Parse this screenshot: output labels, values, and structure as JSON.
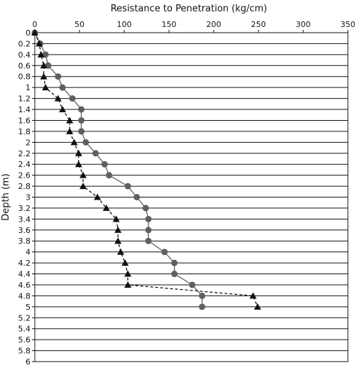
{
  "chart_data": {
    "type": "line",
    "title": "Resistance to Penetration (kg/cm)",
    "xlabel": "Resistance to Penetration (kg/cm)",
    "ylabel": "Depth (m)",
    "xlim": [
      0,
      350
    ],
    "ylim": [
      0,
      6
    ],
    "y_inverted": true,
    "x_axis_position": "top",
    "xticks": [
      "0",
      "50",
      "100",
      "150",
      "200",
      "250",
      "300",
      "350"
    ],
    "yticks": [
      "0",
      "0.2",
      "0.4",
      "0.6",
      "0.8",
      "1",
      "1.2",
      "1.4",
      "1.6",
      "1.8",
      "2",
      "2.2",
      "2.4",
      "2.6",
      "2.8",
      "3",
      "3.2",
      "3.4",
      "3.6",
      "3.8",
      "4",
      "4.2",
      "4.4",
      "4.6",
      "4.8",
      "5",
      "5.2",
      "5.4",
      "5.6",
      "5.8",
      "6"
    ],
    "grid": "horizontal",
    "series": [
      {
        "marker": "circle",
        "line": "solid",
        "color": "#5f5f5f",
        "points": [
          {
            "x": 0,
            "y": 0
          },
          {
            "x": 6,
            "y": 0.2
          },
          {
            "x": 12,
            "y": 0.4
          },
          {
            "x": 15,
            "y": 0.6
          },
          {
            "x": 26,
            "y": 0.8
          },
          {
            "x": 31,
            "y": 1.0
          },
          {
            "x": 42,
            "y": 1.2
          },
          {
            "x": 52,
            "y": 1.4
          },
          {
            "x": 52,
            "y": 1.6
          },
          {
            "x": 52,
            "y": 1.8
          },
          {
            "x": 57,
            "y": 2.0
          },
          {
            "x": 68,
            "y": 2.2
          },
          {
            "x": 78,
            "y": 2.4
          },
          {
            "x": 83,
            "y": 2.6
          },
          {
            "x": 104,
            "y": 2.8
          },
          {
            "x": 114,
            "y": 3.0
          },
          {
            "x": 124,
            "y": 3.2
          },
          {
            "x": 127,
            "y": 3.4
          },
          {
            "x": 127,
            "y": 3.6
          },
          {
            "x": 127,
            "y": 3.8
          },
          {
            "x": 145,
            "y": 4.0
          },
          {
            "x": 156,
            "y": 4.2
          },
          {
            "x": 156,
            "y": 4.4
          },
          {
            "x": 176,
            "y": 4.6
          },
          {
            "x": 187,
            "y": 4.8
          },
          {
            "x": 187,
            "y": 5.0
          }
        ]
      },
      {
        "marker": "triangle",
        "line": "dashed",
        "color": "#111111",
        "points": [
          {
            "x": 0,
            "y": 0
          },
          {
            "x": 5,
            "y": 0.2
          },
          {
            "x": 7,
            "y": 0.4
          },
          {
            "x": 10,
            "y": 0.6
          },
          {
            "x": 10,
            "y": 0.8
          },
          {
            "x": 12,
            "y": 1.0
          },
          {
            "x": 26,
            "y": 1.2
          },
          {
            "x": 31,
            "y": 1.4
          },
          {
            "x": 39,
            "y": 1.6
          },
          {
            "x": 39,
            "y": 1.8
          },
          {
            "x": 44,
            "y": 2.0
          },
          {
            "x": 49,
            "y": 2.2
          },
          {
            "x": 49,
            "y": 2.4
          },
          {
            "x": 54,
            "y": 2.6
          },
          {
            "x": 54,
            "y": 2.8
          },
          {
            "x": 70,
            "y": 3.0
          },
          {
            "x": 80,
            "y": 3.2
          },
          {
            "x": 91,
            "y": 3.4
          },
          {
            "x": 93,
            "y": 3.6
          },
          {
            "x": 93,
            "y": 3.8
          },
          {
            "x": 96,
            "y": 4.0
          },
          {
            "x": 101,
            "y": 4.2
          },
          {
            "x": 104,
            "y": 4.4
          },
          {
            "x": 104,
            "y": 4.6
          },
          {
            "x": 244,
            "y": 4.8
          },
          {
            "x": 249,
            "y": 5.0
          }
        ]
      }
    ]
  }
}
